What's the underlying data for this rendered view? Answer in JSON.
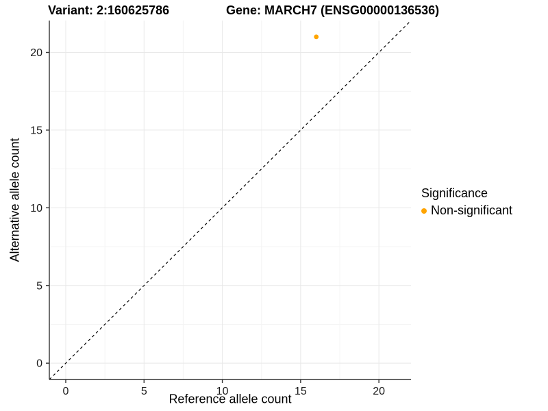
{
  "titles": {
    "left": "Variant: 2:160625786",
    "right": "Gene: MARCH7 (ENSG00000136536)"
  },
  "legend": {
    "title": "Significance",
    "items": [
      {
        "label": "Non-significant",
        "color": "#FFA500"
      }
    ]
  },
  "colors": {
    "point": "#FFA500",
    "axis_line": "#333333",
    "tick_mark": "#333333",
    "tick_label": "#1a1a1a",
    "grid_major": "#e8e8e8",
    "grid_minor": "#f4f4f4",
    "reference_line": "#000000",
    "background": "#ffffff"
  },
  "chart_data": {
    "type": "scatter",
    "title": "Variant: 2:160625786 | Gene: MARCH7 (ENSG00000136536)",
    "xlabel": "Reference allele count",
    "ylabel": "Alternative allele count",
    "xlim": [
      -1.05,
      22.05
    ],
    "ylim": [
      -1.05,
      22.05
    ],
    "xticks": [
      0,
      5,
      10,
      15,
      20
    ],
    "yticks": [
      0,
      5,
      10,
      15,
      20
    ],
    "minor_xticks": [
      2.5,
      7.5,
      12.5,
      17.5
    ],
    "minor_yticks": [
      2.5,
      7.5,
      12.5,
      17.5
    ],
    "grid": true,
    "legend_position": "right",
    "series": [
      {
        "name": "Non-significant",
        "color": "#FFA500",
        "points": [
          {
            "x": 16,
            "y": 21
          }
        ]
      }
    ],
    "reference_line": {
      "type": "identity",
      "slope": 1,
      "intercept": 0,
      "style": "dashed"
    }
  }
}
